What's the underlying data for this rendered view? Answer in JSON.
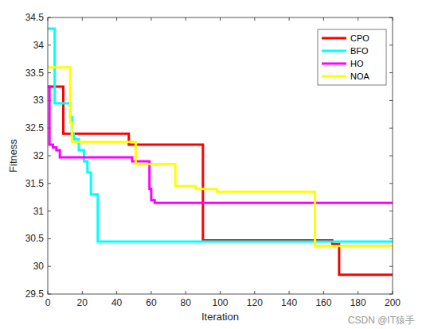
{
  "chart_data": {
    "type": "line",
    "line_style": "step",
    "x_label": "Iteration",
    "y_label": "Fitness",
    "annotations": [
      "CSDN @IT猿手"
    ],
    "legend": "top-right",
    "grid": false,
    "x": [
      0,
      1,
      3,
      4,
      5,
      7,
      9,
      12,
      13,
      14,
      15,
      18,
      21,
      23,
      25,
      29,
      47,
      49,
      51,
      59,
      60,
      62,
      74,
      86,
      90,
      98,
      155,
      165,
      169,
      200
    ],
    "series": [
      {
        "name": "CPO",
        "color": "#ff0000",
        "values": [
          33.25,
          33.25,
          33.25,
          33.25,
          33.25,
          33.25,
          32.4,
          32.4,
          32.4,
          32.4,
          32.4,
          32.4,
          32.4,
          32.4,
          32.4,
          32.4,
          32.2,
          32.2,
          32.2,
          32.2,
          32.2,
          32.2,
          32.2,
          32.2,
          30.47,
          30.47,
          30.47,
          30.4,
          29.85,
          29.85
        ]
      },
      {
        "name": "BFO",
        "color": "#00ffff",
        "values": [
          34.3,
          34.3,
          34.3,
          32.95,
          32.95,
          32.95,
          32.95,
          32.95,
          32.7,
          32.4,
          32.3,
          32.1,
          31.9,
          31.7,
          31.3,
          30.45,
          30.45,
          30.45,
          30.45,
          30.45,
          30.45,
          30.45,
          30.45,
          30.45,
          30.45,
          30.45,
          30.45,
          30.45,
          30.45,
          30.45
        ]
      },
      {
        "name": "HO",
        "color": "#ff00ff",
        "values": [
          33.25,
          32.2,
          32.15,
          32.15,
          32.1,
          31.97,
          31.97,
          31.97,
          31.97,
          31.97,
          31.97,
          31.97,
          31.97,
          31.97,
          31.97,
          31.97,
          31.97,
          31.9,
          31.9,
          31.4,
          31.2,
          31.15,
          31.15,
          31.15,
          31.15,
          31.15,
          31.15,
          31.15,
          31.15,
          31.15
        ]
      },
      {
        "name": "NOA",
        "color": "#ffff00",
        "values": [
          33.6,
          33.6,
          33.6,
          33.6,
          33.6,
          33.6,
          33.6,
          33.6,
          32.6,
          32.25,
          32.25,
          32.25,
          32.25,
          32.25,
          32.25,
          32.25,
          32.25,
          32.25,
          31.85,
          31.85,
          31.85,
          31.85,
          31.45,
          31.4,
          31.4,
          31.35,
          30.37,
          30.37,
          30.37,
          30.37
        ]
      }
    ],
    "xlim": [
      0,
      200
    ],
    "xticks": [
      0,
      20,
      40,
      60,
      80,
      100,
      120,
      140,
      160,
      180,
      200
    ],
    "ylim": [
      29.5,
      34.5
    ],
    "yticks": [
      29.5,
      30,
      30.5,
      31,
      31.5,
      32,
      32.5,
      33,
      33.5,
      34,
      34.5
    ]
  }
}
